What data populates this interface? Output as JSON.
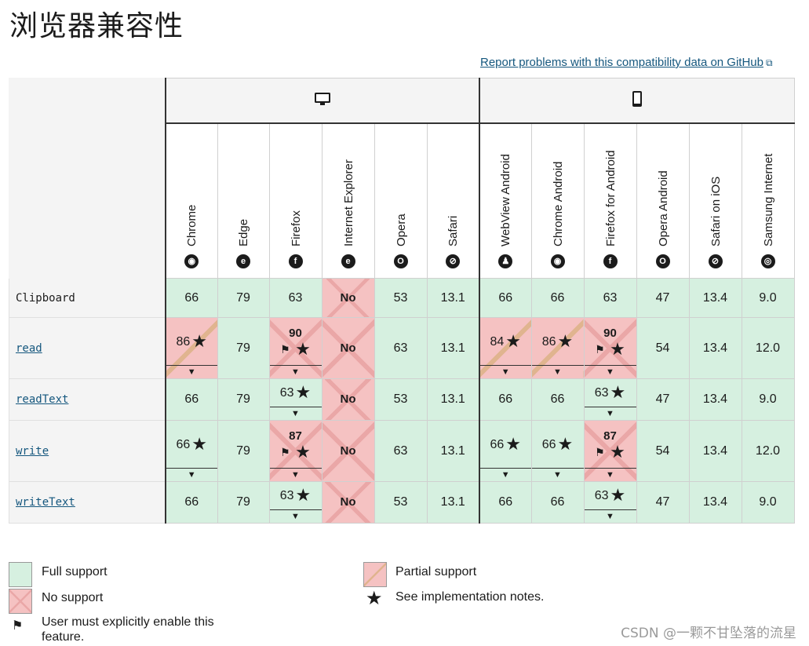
{
  "title": "浏览器兼容性",
  "report_link": "Report problems with this compatibility data on GitHub",
  "platforms": {
    "desktop_icon": "monitor-icon",
    "mobile_icon": "phone-icon"
  },
  "browsers": [
    {
      "name": "Chrome",
      "icon": "chrome-icon",
      "glyph": "◉"
    },
    {
      "name": "Edge",
      "icon": "edge-icon",
      "glyph": "e"
    },
    {
      "name": "Firefox",
      "icon": "firefox-icon",
      "glyph": "f"
    },
    {
      "name": "Internet Explorer",
      "icon": "ie-icon",
      "glyph": "e"
    },
    {
      "name": "Opera",
      "icon": "opera-icon",
      "glyph": "O"
    },
    {
      "name": "Safari",
      "icon": "safari-icon",
      "glyph": "⊘"
    },
    {
      "name": "WebView Android",
      "icon": "android-icon",
      "glyph": "♟"
    },
    {
      "name": "Chrome Android",
      "icon": "chrome-icon",
      "glyph": "◉"
    },
    {
      "name": "Firefox for Android",
      "icon": "firefox-icon",
      "glyph": "f"
    },
    {
      "name": "Opera Android",
      "icon": "opera-icon",
      "glyph": "O"
    },
    {
      "name": "Safari on iOS",
      "icon": "safari-icon",
      "glyph": "⊘"
    },
    {
      "name": "Samsung Internet",
      "icon": "samsung-icon",
      "glyph": "◎"
    }
  ],
  "rows": [
    {
      "feature": "Clipboard",
      "link": false,
      "cells": [
        {
          "t": "full",
          "v": "66"
        },
        {
          "t": "full",
          "v": "79"
        },
        {
          "t": "full",
          "v": "63"
        },
        {
          "t": "none",
          "v": "No"
        },
        {
          "t": "full",
          "v": "53"
        },
        {
          "t": "full",
          "v": "13.1"
        },
        {
          "t": "full",
          "v": "66"
        },
        {
          "t": "full",
          "v": "66"
        },
        {
          "t": "full",
          "v": "63"
        },
        {
          "t": "full",
          "v": "47"
        },
        {
          "t": "full",
          "v": "13.4"
        },
        {
          "t": "full",
          "v": "9.0"
        }
      ]
    },
    {
      "feature": "read",
      "link": true,
      "cells": [
        {
          "t": "partial",
          "v": "86",
          "star": true,
          "tri": true
        },
        {
          "t": "full",
          "v": "79"
        },
        {
          "t": "flag",
          "v": "90",
          "star": true,
          "tri": true
        },
        {
          "t": "none",
          "v": "No"
        },
        {
          "t": "full",
          "v": "63"
        },
        {
          "t": "full",
          "v": "13.1"
        },
        {
          "t": "partial",
          "v": "84",
          "star": true,
          "tri": true
        },
        {
          "t": "partial",
          "v": "86",
          "star": true,
          "tri": true
        },
        {
          "t": "flag",
          "v": "90",
          "star": true,
          "tri": true
        },
        {
          "t": "full",
          "v": "54"
        },
        {
          "t": "full",
          "v": "13.4"
        },
        {
          "t": "full",
          "v": "12.0"
        }
      ]
    },
    {
      "feature": "readText",
      "link": true,
      "cells": [
        {
          "t": "full",
          "v": "66"
        },
        {
          "t": "full",
          "v": "79"
        },
        {
          "t": "full",
          "v": "63",
          "star": true,
          "tri": true
        },
        {
          "t": "none",
          "v": "No"
        },
        {
          "t": "full",
          "v": "53"
        },
        {
          "t": "full",
          "v": "13.1"
        },
        {
          "t": "full",
          "v": "66"
        },
        {
          "t": "full",
          "v": "66"
        },
        {
          "t": "full",
          "v": "63",
          "star": true,
          "tri": true
        },
        {
          "t": "full",
          "v": "47"
        },
        {
          "t": "full",
          "v": "13.4"
        },
        {
          "t": "full",
          "v": "9.0"
        }
      ]
    },
    {
      "feature": "write",
      "link": true,
      "cells": [
        {
          "t": "full",
          "v": "66",
          "star": true,
          "tri": true
        },
        {
          "t": "full",
          "v": "79"
        },
        {
          "t": "flag",
          "v": "87",
          "star": true,
          "tri": true
        },
        {
          "t": "none",
          "v": "No"
        },
        {
          "t": "full",
          "v": "63"
        },
        {
          "t": "full",
          "v": "13.1"
        },
        {
          "t": "full",
          "v": "66",
          "star": true,
          "tri": true
        },
        {
          "t": "full",
          "v": "66",
          "star": true,
          "tri": true
        },
        {
          "t": "flag",
          "v": "87",
          "star": true,
          "tri": true
        },
        {
          "t": "full",
          "v": "54"
        },
        {
          "t": "full",
          "v": "13.4"
        },
        {
          "t": "full",
          "v": "12.0"
        }
      ]
    },
    {
      "feature": "writeText",
      "link": true,
      "cells": [
        {
          "t": "full",
          "v": "66"
        },
        {
          "t": "full",
          "v": "79"
        },
        {
          "t": "full",
          "v": "63",
          "star": true,
          "tri": true
        },
        {
          "t": "none",
          "v": "No"
        },
        {
          "t": "full",
          "v": "53"
        },
        {
          "t": "full",
          "v": "13.1"
        },
        {
          "t": "full",
          "v": "66"
        },
        {
          "t": "full",
          "v": "66"
        },
        {
          "t": "full",
          "v": "63",
          "star": true,
          "tri": true
        },
        {
          "t": "full",
          "v": "47"
        },
        {
          "t": "full",
          "v": "13.4"
        },
        {
          "t": "full",
          "v": "9.0"
        }
      ]
    }
  ],
  "legend": {
    "full": "Full support",
    "none": "No support",
    "flag": "User must explicitly enable this feature.",
    "partial": "Partial support",
    "notes": "See implementation notes."
  },
  "colors": {
    "full": "#d6f0e0",
    "none": "#f5c2c2",
    "link": "#15577e"
  },
  "watermark": "CSDN @一颗不甘坠落的流星"
}
